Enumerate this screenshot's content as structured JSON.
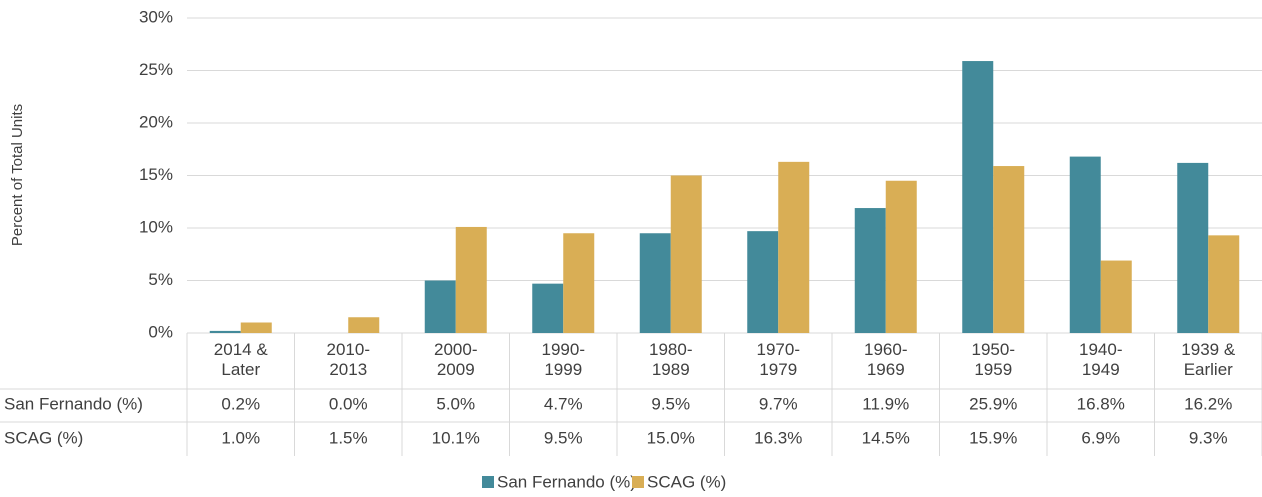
{
  "chart_data": {
    "type": "bar",
    "y_label": "Percent of Total Units",
    "categories": [
      "2014 & Later",
      "2010-2013",
      "2000-2009",
      "1990-1999",
      "1980-1989",
      "1970-1979",
      "1960-1969",
      "1950-1959",
      "1940-1949",
      "1939 & Earlier"
    ],
    "series": [
      {
        "name": "San Fernando (%)",
        "color": "#438a9a",
        "values": [
          0.2,
          0.0,
          5.0,
          4.7,
          9.5,
          9.7,
          11.9,
          25.9,
          16.8,
          16.2
        ],
        "value_labels": [
          "0.2%",
          "0.0%",
          "5.0%",
          "4.7%",
          "9.5%",
          "9.7%",
          "11.9%",
          "25.9%",
          "16.8%",
          "16.2%"
        ]
      },
      {
        "name": "SCAG (%)",
        "color": "#d9ae55",
        "values": [
          1.0,
          1.5,
          10.1,
          9.5,
          15.0,
          16.3,
          14.5,
          15.9,
          6.9,
          9.3
        ],
        "value_labels": [
          "1.0%",
          "1.5%",
          "10.1%",
          "9.5%",
          "15.0%",
          "16.3%",
          "14.5%",
          "15.9%",
          "6.9%",
          "9.3%"
        ]
      }
    ],
    "ylim": [
      0,
      30
    ],
    "yticks": [
      {
        "value": 0,
        "label": "0%"
      },
      {
        "value": 5,
        "label": "5%"
      },
      {
        "value": 10,
        "label": "10%"
      },
      {
        "value": 15,
        "label": "15%"
      },
      {
        "value": 20,
        "label": "20%"
      },
      {
        "value": 25,
        "label": "25%"
      },
      {
        "value": 30,
        "label": "30%"
      }
    ],
    "grid": true,
    "legend": "bottom"
  }
}
